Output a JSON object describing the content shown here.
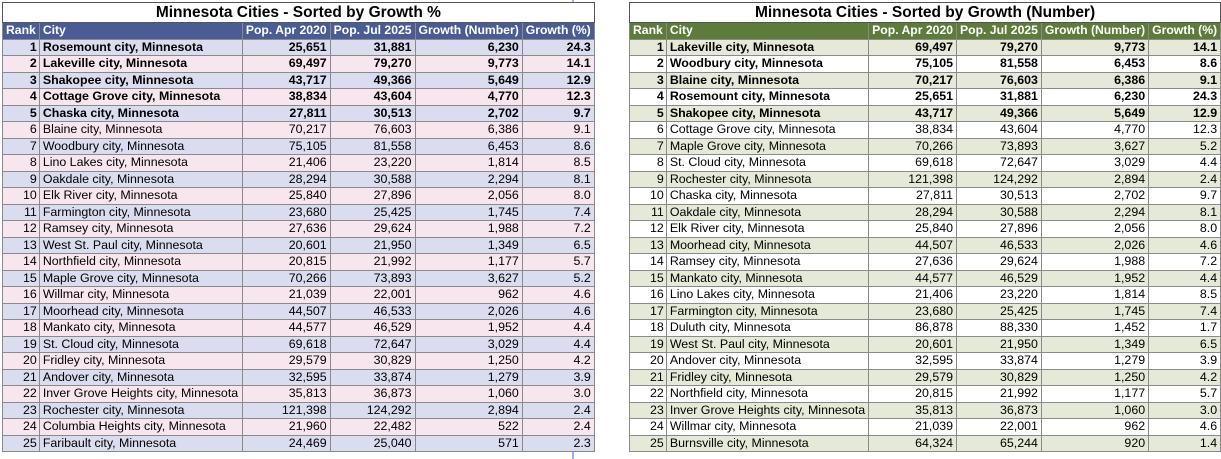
{
  "left_table": {
    "title": "Minnesota Cities - Sorted by Growth %",
    "headers": [
      "Rank",
      "City",
      "Pop. Apr 2020",
      "Pop. Jul 2025",
      "Growth (Number)",
      "Growth (%)"
    ],
    "rows": [
      [
        "1",
        "Rosemount city, Minnesota",
        "25,651",
        "31,881",
        "6,230",
        "24.3"
      ],
      [
        "2",
        "Lakeville city, Minnesota",
        "69,497",
        "79,270",
        "9,773",
        "14.1"
      ],
      [
        "3",
        "Shakopee city, Minnesota",
        "43,717",
        "49,366",
        "5,649",
        "12.9"
      ],
      [
        "4",
        "Cottage Grove city, Minnesota",
        "38,834",
        "43,604",
        "4,770",
        "12.3"
      ],
      [
        "5",
        "Chaska city, Minnesota",
        "27,811",
        "30,513",
        "2,702",
        "9.7"
      ],
      [
        "6",
        "Blaine city, Minnesota",
        "70,217",
        "76,603",
        "6,386",
        "9.1"
      ],
      [
        "7",
        "Woodbury city, Minnesota",
        "75,105",
        "81,558",
        "6,453",
        "8.6"
      ],
      [
        "8",
        "Lino Lakes city, Minnesota",
        "21,406",
        "23,220",
        "1,814",
        "8.5"
      ],
      [
        "9",
        "Oakdale city, Minnesota",
        "28,294",
        "30,588",
        "2,294",
        "8.1"
      ],
      [
        "10",
        "Elk River city, Minnesota",
        "25,840",
        "27,896",
        "2,056",
        "8.0"
      ],
      [
        "11",
        "Farmington city, Minnesota",
        "23,680",
        "25,425",
        "1,745",
        "7.4"
      ],
      [
        "12",
        "Ramsey city, Minnesota",
        "27,636",
        "29,624",
        "1,988",
        "7.2"
      ],
      [
        "13",
        "West St. Paul city, Minnesota",
        "20,601",
        "21,950",
        "1,349",
        "6.5"
      ],
      [
        "14",
        "Northfield city, Minnesota",
        "20,815",
        "21,992",
        "1,177",
        "5.7"
      ],
      [
        "15",
        "Maple Grove city, Minnesota",
        "70,266",
        "73,893",
        "3,627",
        "5.2"
      ],
      [
        "16",
        "Willmar city, Minnesota",
        "21,039",
        "22,001",
        "962",
        "4.6"
      ],
      [
        "17",
        "Moorhead city, Minnesota",
        "44,507",
        "46,533",
        "2,026",
        "4.6"
      ],
      [
        "18",
        "Mankato city, Minnesota",
        "44,577",
        "46,529",
        "1,952",
        "4.4"
      ],
      [
        "19",
        "St. Cloud city, Minnesota",
        "69,618",
        "72,647",
        "3,029",
        "4.4"
      ],
      [
        "20",
        "Fridley city, Minnesota",
        "29,579",
        "30,829",
        "1,250",
        "4.2"
      ],
      [
        "21",
        "Andover city, Minnesota",
        "32,595",
        "33,874",
        "1,279",
        "3.9"
      ],
      [
        "22",
        "Inver Grove Heights city, Minnesota",
        "35,813",
        "36,873",
        "1,060",
        "3.0"
      ],
      [
        "23",
        "Rochester city, Minnesota",
        "121,398",
        "124,292",
        "2,894",
        "2.4"
      ],
      [
        "24",
        "Columbia Heights city, Minnesota",
        "21,960",
        "22,482",
        "522",
        "2.4"
      ],
      [
        "25",
        "Faribault city, Minnesota",
        "24,469",
        "25,040",
        "571",
        "2.3"
      ]
    ]
  },
  "right_table": {
    "title": "Minnesota Cities - Sorted by Growth (Number)",
    "headers": [
      "Rank",
      "City",
      "Pop. Apr 2020",
      "Pop. Jul 2025",
      "Growth (Number)",
      "Growth (%)"
    ],
    "rows": [
      [
        "1",
        "Lakeville city, Minnesota",
        "69,497",
        "79,270",
        "9,773",
        "14.1"
      ],
      [
        "2",
        "Woodbury city, Minnesota",
        "75,105",
        "81,558",
        "6,453",
        "8.6"
      ],
      [
        "3",
        "Blaine city, Minnesota",
        "70,217",
        "76,603",
        "6,386",
        "9.1"
      ],
      [
        "4",
        "Rosemount city, Minnesota",
        "25,651",
        "31,881",
        "6,230",
        "24.3"
      ],
      [
        "5",
        "Shakopee city, Minnesota",
        "43,717",
        "49,366",
        "5,649",
        "12.9"
      ],
      [
        "6",
        "Cottage Grove city, Minnesota",
        "38,834",
        "43,604",
        "4,770",
        "12.3"
      ],
      [
        "7",
        "Maple Grove city, Minnesota",
        "70,266",
        "73,893",
        "3,627",
        "5.2"
      ],
      [
        "8",
        "St. Cloud city, Minnesota",
        "69,618",
        "72,647",
        "3,029",
        "4.4"
      ],
      [
        "9",
        "Rochester city, Minnesota",
        "121,398",
        "124,292",
        "2,894",
        "2.4"
      ],
      [
        "10",
        "Chaska city, Minnesota",
        "27,811",
        "30,513",
        "2,702",
        "9.7"
      ],
      [
        "11",
        "Oakdale city, Minnesota",
        "28,294",
        "30,588",
        "2,294",
        "8.1"
      ],
      [
        "12",
        "Elk River city, Minnesota",
        "25,840",
        "27,896",
        "2,056",
        "8.0"
      ],
      [
        "13",
        "Moorhead city, Minnesota",
        "44,507",
        "46,533",
        "2,026",
        "4.6"
      ],
      [
        "14",
        "Ramsey city, Minnesota",
        "27,636",
        "29,624",
        "1,988",
        "7.2"
      ],
      [
        "15",
        "Mankato city, Minnesota",
        "44,577",
        "46,529",
        "1,952",
        "4.4"
      ],
      [
        "16",
        "Lino Lakes city, Minnesota",
        "21,406",
        "23,220",
        "1,814",
        "8.5"
      ],
      [
        "17",
        "Farmington city, Minnesota",
        "23,680",
        "25,425",
        "1,745",
        "7.4"
      ],
      [
        "18",
        "Duluth city, Minnesota",
        "86,878",
        "88,330",
        "1,452",
        "1.7"
      ],
      [
        "19",
        "West St. Paul city, Minnesota",
        "20,601",
        "21,950",
        "1,349",
        "6.5"
      ],
      [
        "20",
        "Andover city, Minnesota",
        "32,595",
        "33,874",
        "1,279",
        "3.9"
      ],
      [
        "21",
        "Fridley city, Minnesota",
        "29,579",
        "30,829",
        "1,250",
        "4.2"
      ],
      [
        "22",
        "Northfield city, Minnesota",
        "20,815",
        "21,992",
        "1,177",
        "5.7"
      ],
      [
        "23",
        "Inver Grove Heights city, Minnesota",
        "35,813",
        "36,873",
        "1,060",
        "3.0"
      ],
      [
        "24",
        "Willmar city, Minnesota",
        "21,039",
        "22,001",
        "962",
        "4.6"
      ],
      [
        "25",
        "Burnsville city, Minnesota",
        "64,324",
        "65,244",
        "920",
        "1.4"
      ]
    ]
  },
  "colors": {
    "left_header": "#4a5c95",
    "right_header": "#5d7c3c",
    "left_band_a": "#dadcef",
    "left_band_b": "#f7e6ee",
    "right_band_a": "#e4ead7",
    "right_band_b": "#ffffff"
  }
}
